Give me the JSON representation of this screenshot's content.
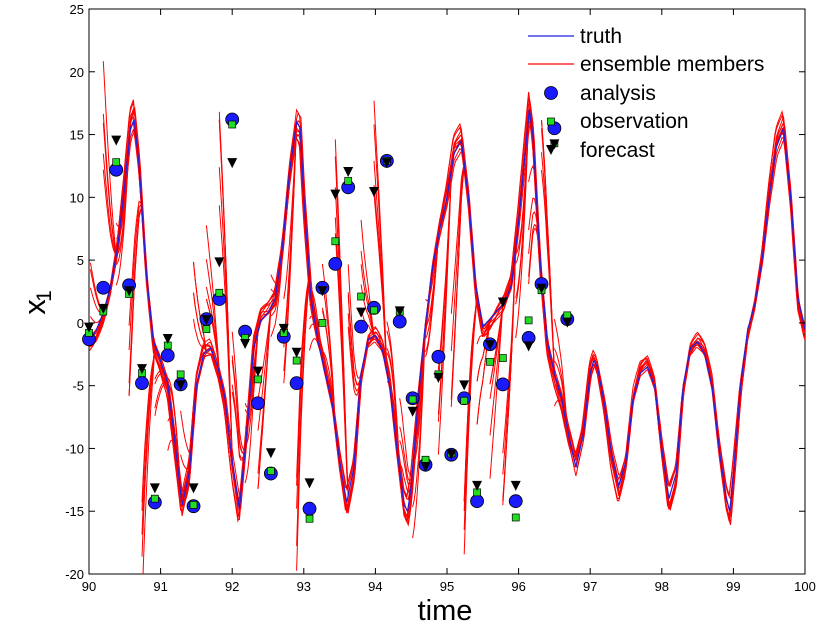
{
  "chart_data": {
    "type": "line",
    "xlabel": "time",
    "ylabel": "x",
    "ylabel_subscript": "1",
    "xlim": [
      90,
      100
    ],
    "ylim": [
      -20,
      25
    ],
    "xticks": [
      90,
      91,
      92,
      93,
      94,
      95,
      96,
      97,
      98,
      99,
      100
    ],
    "yticks": [
      -20,
      -15,
      -10,
      -5,
      0,
      5,
      10,
      15,
      20,
      25
    ],
    "colors": {
      "truth": "#2020e0",
      "ensemble": "#ff0000",
      "analysis_fill": "#1a1aff",
      "observation_fill": "#22dd22",
      "forecast_fill": "#000000"
    },
    "legend": {
      "position": "top-right",
      "entries": [
        {
          "label": "truth",
          "kind": "line-blue"
        },
        {
          "label": "ensemble members",
          "kind": "line-red"
        },
        {
          "label": "analysis",
          "kind": "marker-circle"
        },
        {
          "label": "observation",
          "kind": "marker-square"
        },
        {
          "label": "forecast",
          "kind": "marker-triangle"
        }
      ]
    },
    "series": [
      {
        "name": "truth",
        "points": [
          [
            90.0,
            -1.5
          ],
          [
            90.1,
            -0.6
          ],
          [
            90.2,
            0.8
          ],
          [
            90.3,
            2.8
          ],
          [
            90.4,
            6.0
          ],
          [
            90.5,
            11.0
          ],
          [
            90.58,
            15.5
          ],
          [
            90.63,
            16.2
          ],
          [
            90.7,
            12.5
          ],
          [
            90.8,
            4.0
          ],
          [
            90.9,
            -1.5
          ],
          [
            91.0,
            -3.0
          ],
          [
            91.1,
            -4.8
          ],
          [
            91.2,
            -9.5
          ],
          [
            91.3,
            -14.5
          ],
          [
            91.4,
            -12.0
          ],
          [
            91.5,
            -5.0
          ],
          [
            91.6,
            -2.5
          ],
          [
            91.7,
            -2.0
          ],
          [
            91.8,
            -3.5
          ],
          [
            91.9,
            -6.0
          ],
          [
            92.0,
            -11.0
          ],
          [
            92.1,
            -14.8
          ],
          [
            92.2,
            -9.0
          ],
          [
            92.3,
            -2.0
          ],
          [
            92.4,
            0.2
          ],
          [
            92.5,
            0.8
          ],
          [
            92.6,
            1.9
          ],
          [
            92.7,
            6.0
          ],
          [
            92.8,
            12.0
          ],
          [
            92.9,
            16.0
          ],
          [
            92.95,
            15.5
          ],
          [
            93.0,
            10.0
          ],
          [
            93.1,
            2.0
          ],
          [
            93.2,
            -1.5
          ],
          [
            93.3,
            -4.0
          ],
          [
            93.4,
            -6.5
          ],
          [
            93.5,
            -11.0
          ],
          [
            93.6,
            -14.3
          ],
          [
            93.7,
            -11.5
          ],
          [
            93.8,
            -4.0
          ],
          [
            93.9,
            -1.3
          ],
          [
            94.0,
            -1.0
          ],
          [
            94.1,
            -2.2
          ],
          [
            94.2,
            -5.0
          ],
          [
            94.3,
            -10.0
          ],
          [
            94.4,
            -14.5
          ],
          [
            94.45,
            -15.0
          ],
          [
            94.5,
            -13.0
          ],
          [
            94.6,
            -6.0
          ],
          [
            94.7,
            0.0
          ],
          [
            94.8,
            4.5
          ],
          [
            94.9,
            7.5
          ],
          [
            95.0,
            10.0
          ],
          [
            95.1,
            13.5
          ],
          [
            95.2,
            14.5
          ],
          [
            95.3,
            10.0
          ],
          [
            95.4,
            3.0
          ],
          [
            95.5,
            -0.3
          ],
          [
            95.6,
            0.3
          ],
          [
            95.7,
            1.0
          ],
          [
            95.8,
            1.5
          ],
          [
            95.9,
            3.0
          ],
          [
            96.0,
            8.0
          ],
          [
            96.1,
            14.0
          ],
          [
            96.15,
            17.0
          ],
          [
            96.2,
            15.0
          ],
          [
            96.3,
            5.0
          ],
          [
            96.4,
            -1.5
          ],
          [
            96.5,
            -4.0
          ],
          [
            96.6,
            -6.0
          ],
          [
            96.7,
            -9.0
          ],
          [
            96.8,
            -11.5
          ],
          [
            96.9,
            -9.0
          ],
          [
            97.0,
            -4.0
          ],
          [
            97.05,
            -3.0
          ],
          [
            97.1,
            -3.5
          ],
          [
            97.2,
            -6.5
          ],
          [
            97.3,
            -10.5
          ],
          [
            97.4,
            -13.0
          ],
          [
            97.5,
            -11.0
          ],
          [
            97.6,
            -6.0
          ],
          [
            97.7,
            -4.0
          ],
          [
            97.8,
            -3.5
          ],
          [
            97.9,
            -5.0
          ],
          [
            98.0,
            -10.0
          ],
          [
            98.1,
            -14.0
          ],
          [
            98.2,
            -12.0
          ],
          [
            98.3,
            -5.0
          ],
          [
            98.4,
            -2.0
          ],
          [
            98.5,
            -1.5
          ],
          [
            98.6,
            -2.5
          ],
          [
            98.7,
            -5.0
          ],
          [
            98.8,
            -10.0
          ],
          [
            98.9,
            -14.0
          ],
          [
            98.95,
            -15.0
          ],
          [
            99.0,
            -12.0
          ],
          [
            99.1,
            -5.0
          ],
          [
            99.2,
            -0.5
          ],
          [
            99.3,
            1.5
          ],
          [
            99.4,
            5.0
          ],
          [
            99.5,
            10.0
          ],
          [
            99.6,
            14.0
          ],
          [
            99.7,
            15.5
          ],
          [
            99.8,
            10.0
          ],
          [
            99.9,
            2.0
          ],
          [
            100.0,
            -0.5
          ]
        ]
      },
      {
        "name": "analysis",
        "points": [
          [
            90.0,
            -1.3
          ],
          [
            90.2,
            2.8
          ],
          [
            90.38,
            12.2
          ],
          [
            90.56,
            3.0
          ],
          [
            90.74,
            -4.8
          ],
          [
            90.92,
            -14.3
          ],
          [
            91.1,
            -2.6
          ],
          [
            91.28,
            -4.9
          ],
          [
            91.46,
            -14.6
          ],
          [
            91.64,
            0.3
          ],
          [
            91.82,
            1.9
          ],
          [
            92.0,
            16.2
          ],
          [
            92.18,
            -0.7
          ],
          [
            92.36,
            -6.4
          ],
          [
            92.54,
            -12.0
          ],
          [
            92.72,
            -1.1
          ],
          [
            92.9,
            -4.8
          ],
          [
            93.08,
            -14.8
          ],
          [
            93.26,
            2.8
          ],
          [
            93.44,
            4.7
          ],
          [
            93.62,
            10.8
          ],
          [
            93.8,
            -0.3
          ],
          [
            93.98,
            1.2
          ],
          [
            94.16,
            12.9
          ],
          [
            94.34,
            0.1
          ],
          [
            94.52,
            -6.0
          ],
          [
            94.7,
            -11.3
          ],
          [
            94.88,
            -2.7
          ],
          [
            95.06,
            -10.5
          ],
          [
            95.24,
            -6.0
          ],
          [
            95.42,
            -14.2
          ],
          [
            95.6,
            -1.7
          ],
          [
            95.78,
            -4.9
          ],
          [
            95.96,
            -14.2
          ],
          [
            96.14,
            -1.2
          ],
          [
            96.32,
            3.1
          ],
          [
            96.5,
            15.5
          ],
          [
            96.68,
            0.3
          ]
        ]
      },
      {
        "name": "observation",
        "points": [
          [
            90.0,
            -0.8
          ],
          [
            90.2,
            0.9
          ],
          [
            90.38,
            12.8
          ],
          [
            90.56,
            2.3
          ],
          [
            90.74,
            -4.0
          ],
          [
            90.92,
            -14.0
          ],
          [
            91.1,
            -1.8
          ],
          [
            91.28,
            -4.1
          ],
          [
            91.46,
            -14.5
          ],
          [
            91.64,
            -0.5
          ],
          [
            91.82,
            2.4
          ],
          [
            92.0,
            15.8
          ],
          [
            92.18,
            -1.2
          ],
          [
            92.36,
            -4.5
          ],
          [
            92.54,
            -11.8
          ],
          [
            92.72,
            -0.8
          ],
          [
            92.9,
            -3.0
          ],
          [
            93.08,
            -15.6
          ],
          [
            93.26,
            0.0
          ],
          [
            93.44,
            6.5
          ],
          [
            93.62,
            11.3
          ],
          [
            93.8,
            2.1
          ],
          [
            93.98,
            1.0
          ],
          [
            94.16,
            12.9
          ],
          [
            94.34,
            0.9
          ],
          [
            94.52,
            -6.1
          ],
          [
            94.7,
            -10.9
          ],
          [
            94.88,
            -4.1
          ],
          [
            95.06,
            -10.4
          ],
          [
            95.24,
            -6.2
          ],
          [
            95.42,
            -13.5
          ],
          [
            95.6,
            -3.1
          ],
          [
            95.78,
            -2.8
          ],
          [
            95.96,
            -15.5
          ],
          [
            96.14,
            0.2
          ],
          [
            96.32,
            2.6
          ],
          [
            96.5,
            14.3
          ],
          [
            96.68,
            0.6
          ]
        ]
      },
      {
        "name": "forecast",
        "points": [
          [
            90.0,
            -0.3
          ],
          [
            90.2,
            1.2
          ],
          [
            90.38,
            14.6
          ],
          [
            90.56,
            2.6
          ],
          [
            90.74,
            -3.6
          ],
          [
            90.92,
            -13.1
          ],
          [
            91.1,
            -1.2
          ],
          [
            91.28,
            -4.9
          ],
          [
            91.46,
            -13.1
          ],
          [
            91.64,
            0.3
          ],
          [
            91.82,
            4.9
          ],
          [
            92.0,
            12.8
          ],
          [
            92.18,
            -1.6
          ],
          [
            92.36,
            -3.8
          ],
          [
            92.54,
            -10.3
          ],
          [
            92.72,
            -0.4
          ],
          [
            92.9,
            -2.3
          ],
          [
            93.08,
            -12.7
          ],
          [
            93.26,
            2.6
          ],
          [
            93.44,
            10.3
          ],
          [
            93.62,
            12.1
          ],
          [
            93.8,
            0.9
          ],
          [
            93.98,
            10.5
          ],
          [
            94.16,
            12.8
          ],
          [
            94.34,
            1.0
          ],
          [
            94.52,
            -7.0
          ],
          [
            94.7,
            -11.4
          ],
          [
            94.88,
            -4.3
          ],
          [
            95.06,
            -10.4
          ],
          [
            95.24,
            -4.9
          ],
          [
            95.42,
            -12.9
          ],
          [
            95.6,
            -1.7
          ],
          [
            95.78,
            1.7
          ],
          [
            95.96,
            -12.9
          ],
          [
            96.14,
            -1.8
          ],
          [
            96.32,
            2.8
          ],
          [
            96.5,
            14.3
          ],
          [
            96.68,
            0.1
          ]
        ]
      }
    ]
  }
}
